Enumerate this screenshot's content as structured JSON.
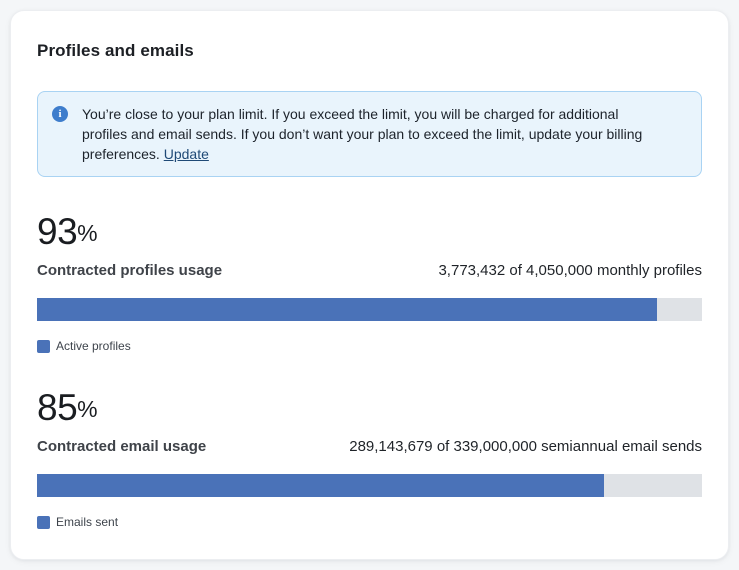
{
  "card": {
    "title": "Profiles and emails"
  },
  "alert": {
    "icon": "info-icon",
    "icon_glyph": "i",
    "message": "You’re close to your plan limit. If you exceed the limit, you will be charged for additional profiles and email sends. If you don’t want your plan to exceed the limit, update your billing preferences. ",
    "link_label": "Update"
  },
  "profiles": {
    "percent_value": "93",
    "percent_unit": "%",
    "label": "Contracted profiles usage",
    "usage_text": "3,773,432 of 4,050,000 monthly profiles",
    "used": "3,773,432",
    "limit": "4,050,000",
    "period": "monthly profiles",
    "bar_percent": 93.2,
    "legend_label": "Active profiles"
  },
  "emails": {
    "percent_value": "85",
    "percent_unit": "%",
    "label": "Contracted email usage",
    "usage_text": "289,143,679 of 339,000,000 semiannual email sends",
    "used": "289,143,679",
    "limit": "339,000,000",
    "period": "semiannual email sends",
    "bar_percent": 85.3,
    "legend_label": "Emails sent"
  },
  "colors": {
    "accent_blue": "#4a72b8",
    "track_gray": "#dfe2e6",
    "alert_bg": "#e9f4fc",
    "alert_border": "#a9d3f3",
    "info_icon_blue": "#3e7dcc",
    "link_color": "#1e4976",
    "page_bg": "#f4f6f8",
    "card_bg": "#ffffff"
  }
}
